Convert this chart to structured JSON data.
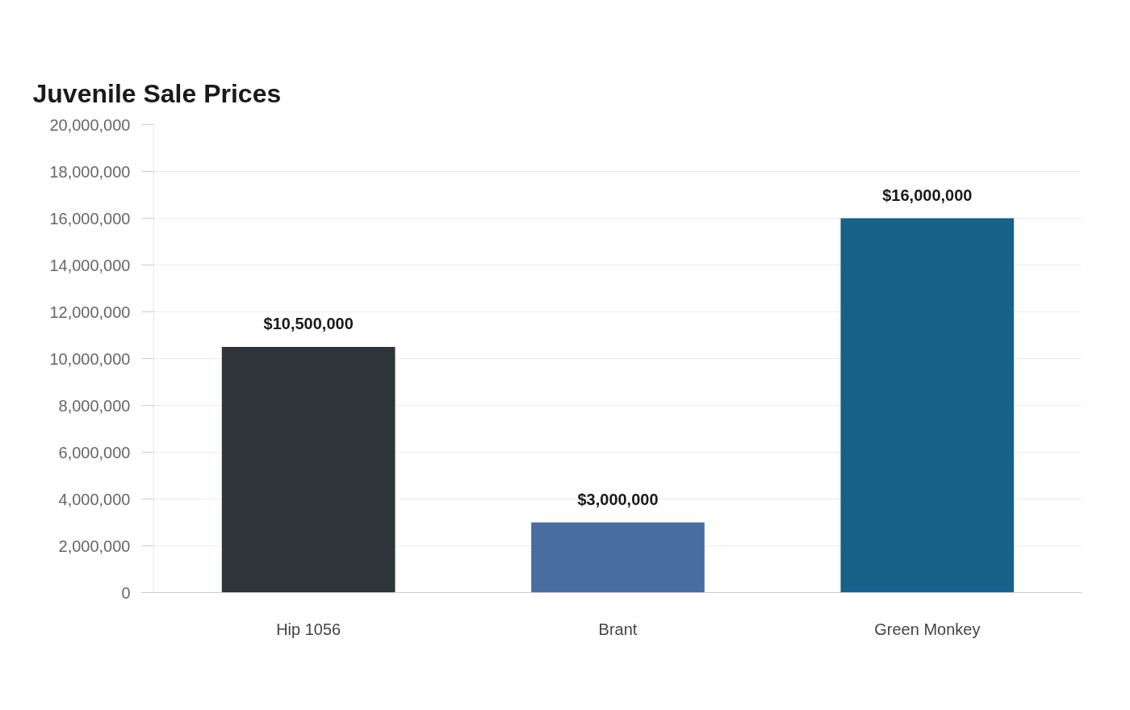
{
  "chart_data": {
    "type": "bar",
    "title": "Juvenile Sale Prices",
    "categories": [
      "Hip 1056",
      "Brant",
      "Green Monkey"
    ],
    "values": [
      10500000,
      3000000,
      16000000
    ],
    "colors": [
      "#2d3538",
      "#4a6da0",
      "#186289"
    ],
    "value_labels": [
      "$10,500,000",
      "$3,000,000",
      "$16,000,000"
    ],
    "ylim": [
      0,
      20000000
    ],
    "yticks": [
      0,
      {
        "value": 2000000,
        "label": "2,000,000"
      },
      {
        "value": 4000000,
        "label": "4,000,000"
      },
      {
        "value": 6000000,
        "label": "6,000,000"
      },
      {
        "value": 8000000,
        "label": "8,000,000"
      },
      {
        "value": 10000000,
        "label": "10,000,000"
      },
      {
        "value": 12000000,
        "label": "12,000,000"
      },
      {
        "value": 14000000,
        "label": "14,000,000"
      },
      {
        "value": 16000000,
        "label": "16,000,000"
      },
      {
        "value": 18000000,
        "label": "18,000,000"
      },
      {
        "value": 20000000,
        "label": "20,000,000"
      }
    ],
    "grid": "y"
  }
}
